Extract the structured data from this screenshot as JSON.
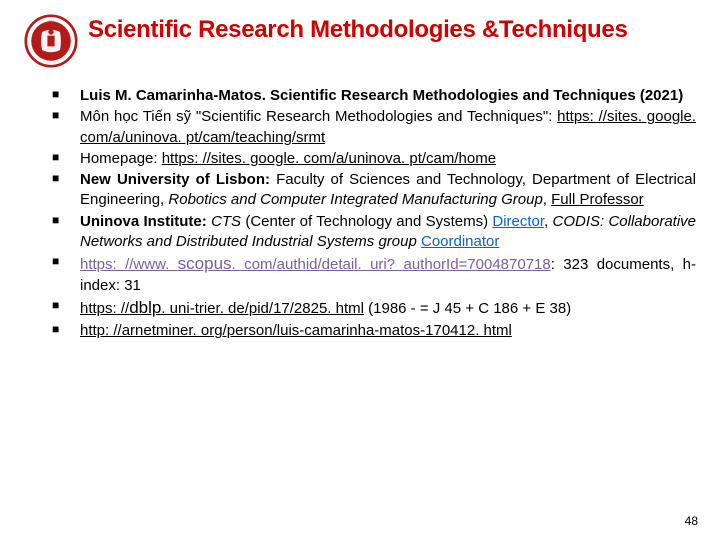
{
  "title": "Scientific Research Methodologies &Techniques",
  "logo": {
    "ring_color": "#b31b1b",
    "inner_color": "#ffffff",
    "text_color": "#ffffff",
    "label": "VNU-UET"
  },
  "bullets": [
    {
      "segments": [
        {
          "text": "Luis M. Camarinha-Matos. Scientific Research Methodologies and Techniques (2021)",
          "bold": true
        }
      ]
    },
    {
      "segments": [
        {
          "text": "Môn học Tiến sỹ \"Scientific Research Methodologies and Techniques\": "
        },
        {
          "text": "https: //sites. google. com/a/uninova. pt/cam/teaching/srmt",
          "link": true
        }
      ]
    },
    {
      "segments": [
        {
          "text": "Homepage: "
        },
        {
          "text": "https: //sites. google. com/a/uninova. pt/cam/home",
          "link": true
        }
      ]
    },
    {
      "segments": [
        {
          "text": "New University of Lisbon:",
          "bold": true
        },
        {
          "text": " Faculty of Sciences and Technology, Department of Electrical Engineering, "
        },
        {
          "text": "Robotics and Computer Integrated Manufacturing Group",
          "italic": true
        },
        {
          "text": ", "
        },
        {
          "text": "Full Professor",
          "link": true
        }
      ]
    },
    {
      "segments": [
        {
          "text": "Uninova Institute:",
          "bold": true
        },
        {
          "text": " "
        },
        {
          "text": "CTS",
          "italic": true
        },
        {
          "text": " (Center of Technology and Systems) "
        },
        {
          "text": "Director",
          "link_blue": true
        },
        {
          "text": ", "
        },
        {
          "text": "CODIS: Collaborative Networks and Distributed Industrial Systems group",
          "italic": true
        },
        {
          "text": " "
        },
        {
          "text": "Coordinator",
          "link_blue": true
        }
      ]
    },
    {
      "segments": [
        {
          "text": "https: //www. ",
          "link_purple": true
        },
        {
          "text": "scopus",
          "link_purple": true,
          "scopus": true
        },
        {
          "text": ". com/authid/detail. uri? authorId=7004870718",
          "link_purple": true
        },
        {
          "text": ": 323 documents, h-index: 31"
        }
      ]
    },
    {
      "segments": [
        {
          "text": "https: //",
          "link": true
        },
        {
          "text": "dblp",
          "link": true,
          "dblp": true
        },
        {
          "text": ". uni-trier. de/pid/17/2825. html",
          "link": true
        },
        {
          "text": " (1986 - = J 45 + C 186 + E 38)"
        }
      ]
    },
    {
      "segments": [
        {
          "text": "http: //arnetminer. org/person/luis-camarinha-matos-170412. html",
          "link": true
        }
      ]
    }
  ],
  "page_number": "48",
  "colors": {
    "title": "#cc0000",
    "text": "#000000",
    "link_blue": "#0563c1",
    "link_purple": "#7b5fa0",
    "background": "#ffffff"
  }
}
